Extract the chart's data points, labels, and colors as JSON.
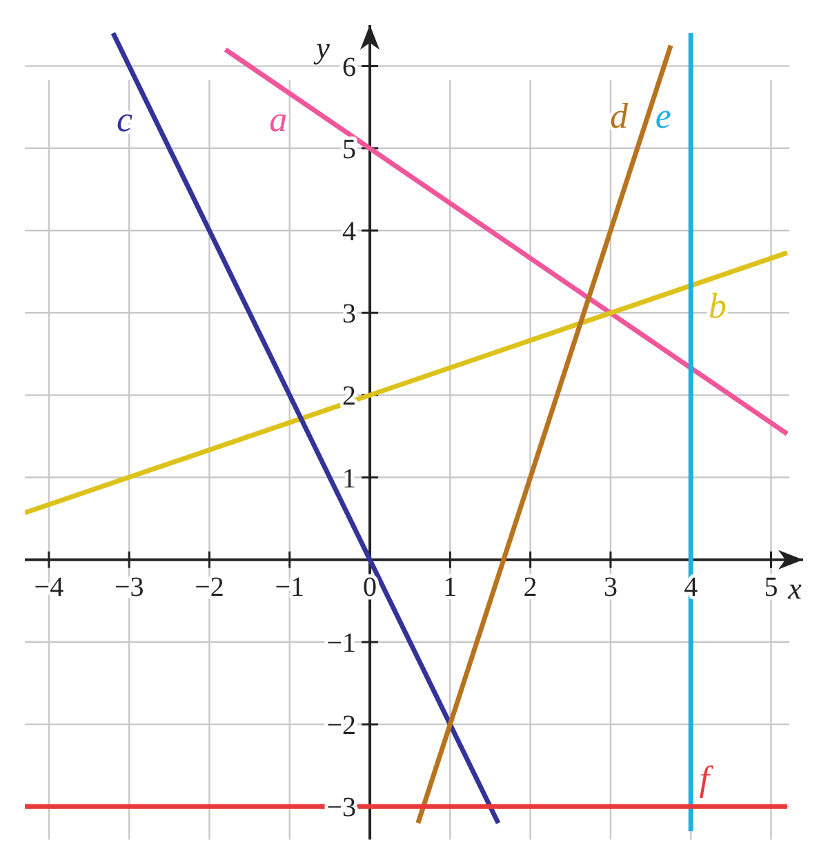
{
  "chart_data": {
    "type": "line",
    "xlabel": "x",
    "ylabel": "y",
    "xlim": [
      -4.3,
      5.4
    ],
    "ylim": [
      -3.4,
      6.5
    ],
    "xticks": [
      -4,
      -3,
      -2,
      -1,
      0,
      1,
      2,
      3,
      4,
      5
    ],
    "yticks": [
      -3,
      -2,
      -1,
      {
        "value": 0,
        "label": null
      },
      1,
      2,
      3,
      4,
      5,
      6
    ],
    "grid": true,
    "marker": "none",
    "line_style": "solid",
    "series": [
      {
        "name": "a",
        "color": "#f0569a",
        "x": [
          5.2,
          -1.8
        ],
        "values": [
          1.53,
          6.2
        ]
      },
      {
        "name": "b",
        "color": "#dcc21a",
        "x": [
          -4.3,
          5.2
        ],
        "values": [
          0.57,
          3.73
        ]
      },
      {
        "name": "c",
        "color": "#33339a",
        "x": [
          1.6,
          -3.2
        ],
        "values": [
          -3.2,
          6.4
        ]
      },
      {
        "name": "d",
        "color": "#b8731e",
        "x": [
          0.6,
          3.75
        ],
        "values": [
          -3.2,
          6.25
        ]
      },
      {
        "name": "e",
        "color": "#1ab2e6",
        "x": [
          4,
          4
        ],
        "values": [
          -3.3,
          6.4
        ]
      },
      {
        "name": "f",
        "color": "#e83a3a",
        "x": [
          -4.3,
          5.2
        ],
        "values": [
          -3,
          -3
        ]
      }
    ]
  }
}
